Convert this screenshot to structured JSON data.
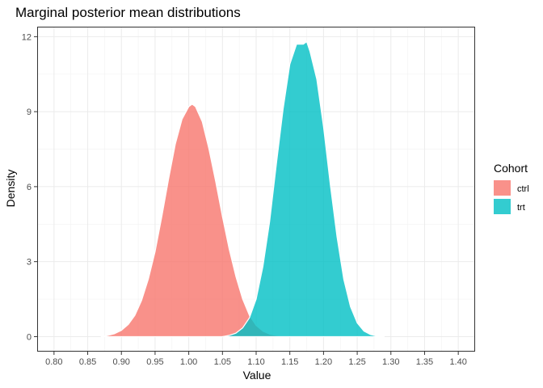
{
  "chart_data": {
    "type": "area",
    "title": "Marginal posterior mean distributions",
    "xlabel": "Value",
    "ylabel": "Density",
    "xlim": [
      0.775,
      1.425
    ],
    "ylim": [
      -0.6,
      12.4
    ],
    "x_ticks": [
      0.8,
      0.85,
      0.9,
      0.95,
      1.0,
      1.05,
      1.1,
      1.15,
      1.2,
      1.25,
      1.3,
      1.35,
      1.4
    ],
    "x_tick_labels": [
      "0.80",
      "0.85",
      "0.90",
      "0.95",
      "1.00",
      "1.05",
      "1.10",
      "1.15",
      "1.20",
      "1.25",
      "1.30",
      "1.35",
      "1.40"
    ],
    "y_ticks": [
      0,
      3,
      6,
      9,
      12
    ],
    "y_tick_labels": [
      "0",
      "3",
      "6",
      "9",
      "12"
    ],
    "grid": true,
    "legend": {
      "title": "Cohort",
      "position": "right"
    },
    "series": [
      {
        "name": "ctrl",
        "color": "#F8766D",
        "opacity": 0.8,
        "x": [
          0.87,
          0.88,
          0.89,
          0.9,
          0.91,
          0.92,
          0.93,
          0.94,
          0.95,
          0.96,
          0.97,
          0.98,
          0.99,
          1.0,
          1.005,
          1.01,
          1.02,
          1.03,
          1.04,
          1.05,
          1.06,
          1.07,
          1.08,
          1.09,
          1.1,
          1.11,
          1.12,
          1.13,
          1.14,
          1.15,
          1.16
        ],
        "y": [
          0.0,
          0.05,
          0.12,
          0.25,
          0.48,
          0.85,
          1.45,
          2.3,
          3.4,
          4.8,
          6.3,
          7.7,
          8.7,
          9.2,
          9.3,
          9.2,
          8.6,
          7.5,
          6.2,
          4.8,
          3.5,
          2.4,
          1.5,
          0.85,
          0.45,
          0.22,
          0.1,
          0.05,
          0.02,
          0.01,
          0.0
        ]
      },
      {
        "name": "trt",
        "color": "#00BFC4",
        "opacity": 0.8,
        "x": [
          1.05,
          1.06,
          1.07,
          1.08,
          1.09,
          1.1,
          1.11,
          1.12,
          1.13,
          1.14,
          1.15,
          1.16,
          1.17,
          1.175,
          1.18,
          1.19,
          1.2,
          1.21,
          1.22,
          1.23,
          1.24,
          1.25,
          1.26,
          1.27,
          1.28,
          1.29
        ],
        "y": [
          0.0,
          0.05,
          0.14,
          0.35,
          0.75,
          1.5,
          2.8,
          4.6,
          6.9,
          9.1,
          10.9,
          11.7,
          11.7,
          11.8,
          11.4,
          10.3,
          8.4,
          6.1,
          4.0,
          2.3,
          1.2,
          0.55,
          0.22,
          0.08,
          0.02,
          0.0
        ]
      }
    ]
  }
}
